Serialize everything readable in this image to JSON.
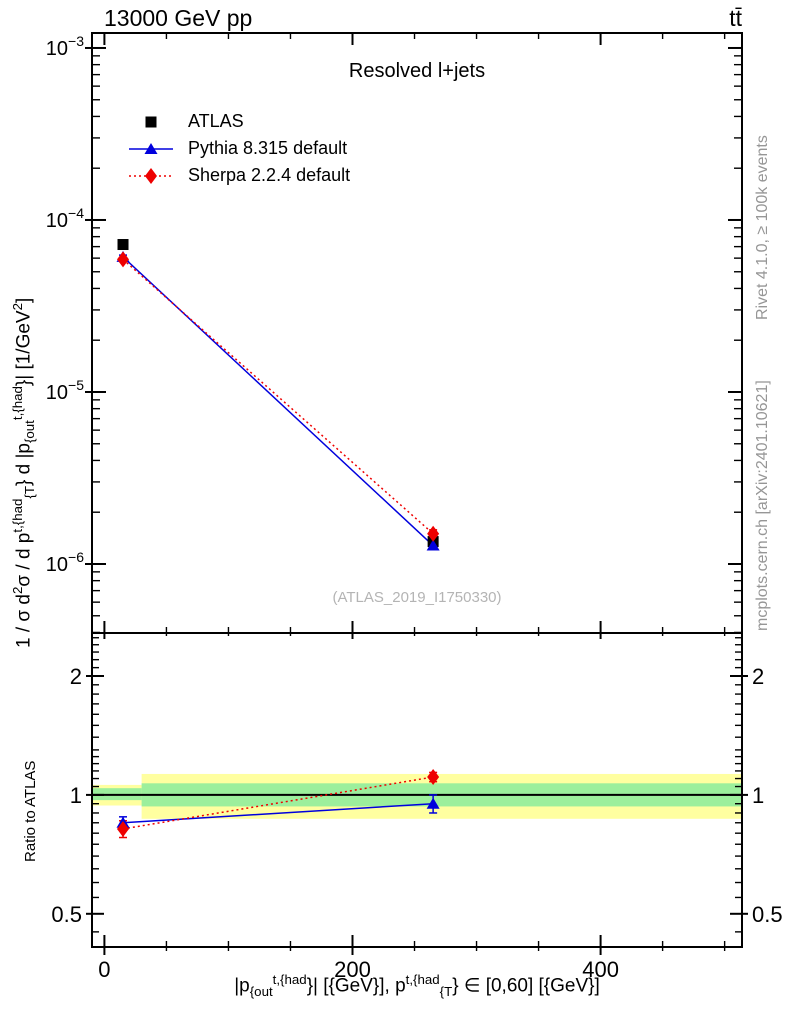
{
  "header": {
    "left": "13000 GeV pp",
    "right": "tt̄"
  },
  "panel_title": "Resolved l+jets",
  "watermark": "(ATLAS_2019_I1750330)",
  "side_notes": {
    "top": "Rivet 4.1.0, ≥ 100k events",
    "bottom": "mcplots.cern.ch [arXiv:2401.10621]"
  },
  "axis_labels": {
    "ratio_y": "Ratio to ATLAS",
    "y_main_segments": [
      {
        "t": "1 / σ d"
      },
      {
        "t": "2",
        "s": "sup"
      },
      {
        "t": "σ / d p"
      },
      {
        "t": "t,{had",
        "s": "sup"
      },
      {
        "t": "{T",
        "s": "sub"
      },
      {
        "t": "} d |p"
      },
      {
        "t": "{out",
        "s": "sub"
      },
      {
        "t": "t,{had",
        "s": "sup"
      },
      {
        "t": "}| [1/GeV"
      },
      {
        "t": "2",
        "s": "sup"
      },
      {
        "t": "]"
      }
    ],
    "x_segments": [
      {
        "t": "|p"
      },
      {
        "t": "{out",
        "s": "sub"
      },
      {
        "t": "t,{had",
        "s": "sup"
      },
      {
        "t": "}| [{GeV}], p"
      },
      {
        "t": "t,{had",
        "s": "sup"
      },
      {
        "t": "{T",
        "s": "sub"
      },
      {
        "t": "} ∈ [0,60] [{GeV}]"
      }
    ]
  },
  "legend": [
    {
      "label": "ATLAS",
      "marker": "square",
      "color": "#000000",
      "line": "none"
    },
    {
      "label": "Pythia 8.315 default",
      "marker": "triangle",
      "color": "#0000dd",
      "line": "solid"
    },
    {
      "label": "Sherpa 2.2.4 default",
      "marker": "diamond",
      "color": "#ee0000",
      "line": "dotted"
    }
  ],
  "colors": {
    "atlas": "#000000",
    "pythia": "#0000dd",
    "sherpa": "#ee0000",
    "band_yellow": "#ffffa0",
    "band_green": "#9cef9c",
    "frame": "#000000",
    "gray_text": "#969696",
    "watermark": "#b4b4b4"
  },
  "chart_data": [
    {
      "type": "scatter",
      "panel": "main",
      "title": "Resolved l+jets",
      "xlabel": "|p_{out}^{t,{had}}| [{GeV}], p_T^{t,{had}} ∈ [0,60] [{GeV}]",
      "ylabel": "1 / σ d²σ / d p_T^{t,{had}} d |p_{out}^{t,{had}}| [1/GeV²]",
      "yscale": "log",
      "xlim": [
        -10,
        514
      ],
      "ylim": [
        3.97e-07,
        0.001222
      ],
      "x_ticks_major": [
        0,
        200,
        400
      ],
      "x_tick_labels": [
        "0",
        "200",
        "400"
      ],
      "x_ticks_minor": [
        50,
        100,
        150,
        250,
        300,
        350,
        450,
        500
      ],
      "y_ticks_major": [
        0.001,
        0.0001,
        1e-05,
        1e-06
      ],
      "y_tick_labels": [
        {
          "base": "10",
          "exp": "−3"
        },
        {
          "base": "10",
          "exp": "−4"
        },
        {
          "base": "10",
          "exp": "−5"
        },
        {
          "base": "10",
          "exp": "−6"
        }
      ],
      "bin_edges": [
        0,
        30,
        500
      ],
      "series": [
        {
          "name": "ATLAS",
          "marker": "square",
          "color": "#000000",
          "line": "none",
          "x": [
            15,
            265
          ],
          "y": [
            7.2e-05,
            1.35e-06
          ],
          "yerr": [
            3e-06,
            8e-08
          ]
        },
        {
          "name": "Pythia 8.315 default",
          "marker": "triangle",
          "color": "#0000dd",
          "line": "solid",
          "x": [
            15,
            265
          ],
          "y": [
            6.1e-05,
            1.28e-06
          ],
          "yerr": [
            1.5e-06,
            7e-08
          ]
        },
        {
          "name": "Sherpa 2.2.4 default",
          "marker": "diamond",
          "color": "#ee0000",
          "line": "dotted",
          "x": [
            15,
            265
          ],
          "y": [
            5.9e-05,
            1.5e-06
          ],
          "yerr": [
            1.5e-06,
            8e-08
          ]
        }
      ]
    },
    {
      "type": "ratio",
      "panel": "ratio",
      "ylabel": "Ratio to ATLAS",
      "yscale": "log",
      "xlim": [
        -10,
        514
      ],
      "ylim": [
        0.412,
        2.57
      ],
      "reference_line": 1.0,
      "y_ticks_major": [
        2,
        1,
        0.5
      ],
      "y_tick_labels": [
        "2",
        "1",
        "0.5"
      ],
      "y_ticks_minor": [
        0.45,
        0.55,
        0.6,
        0.65,
        0.7,
        0.75,
        0.8,
        0.85,
        0.9,
        0.95,
        1.05,
        1.1,
        1.15,
        1.2,
        1.25,
        1.3,
        1.4,
        1.5,
        1.6,
        1.7,
        1.8,
        1.9,
        2.1,
        2.2,
        2.3,
        2.4,
        2.5
      ],
      "bands": [
        {
          "x0": -10,
          "x1": 30,
          "yellow": [
            0.94,
            1.06
          ],
          "green": [
            0.97,
            1.04
          ]
        },
        {
          "x0": 30,
          "x1": 514,
          "yellow": [
            0.87,
            1.13
          ],
          "green": [
            0.935,
            1.07
          ]
        }
      ],
      "series": [
        {
          "name": "Pythia 8.315 default",
          "marker": "triangle",
          "color": "#0000dd",
          "line": "solid",
          "x": [
            15,
            265
          ],
          "y": [
            0.85,
            0.95
          ],
          "yerr": [
            0.03,
            0.05
          ]
        },
        {
          "name": "Sherpa 2.2.4 default",
          "marker": "diamond",
          "color": "#ee0000",
          "line": "dotted",
          "x": [
            15,
            265
          ],
          "y": [
            0.82,
            1.11
          ],
          "yerr": [
            0.04,
            0.03
          ]
        }
      ]
    }
  ]
}
